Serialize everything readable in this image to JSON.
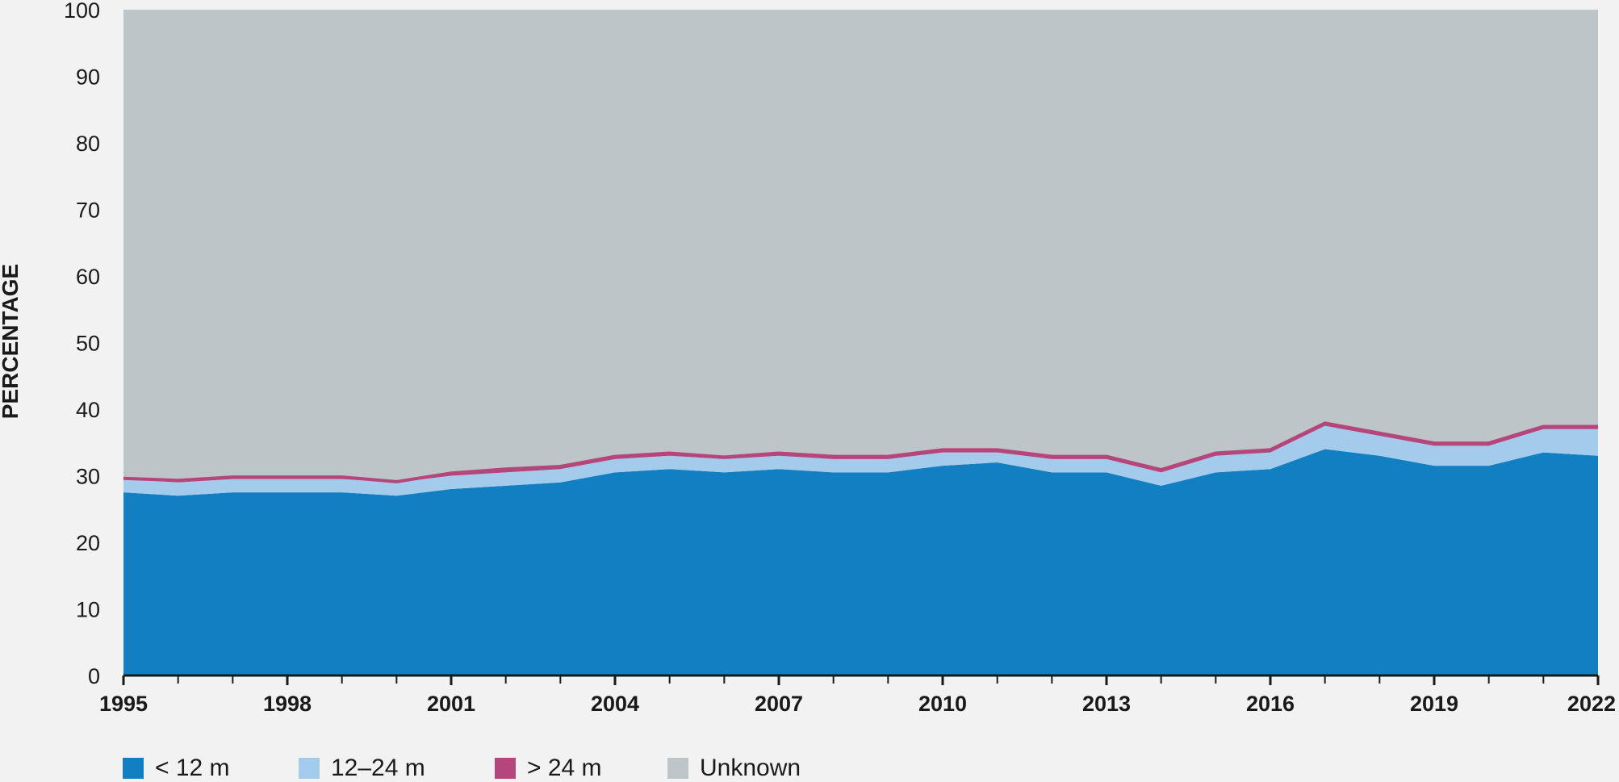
{
  "chart_data": {
    "type": "area",
    "stacked": true,
    "ylabel": "PERCENTAGE",
    "xlabel": "",
    "ylim": [
      0,
      100
    ],
    "yticks": [
      0,
      10,
      20,
      30,
      40,
      50,
      60,
      70,
      80,
      90,
      100
    ],
    "x": [
      1995,
      1996,
      1997,
      1998,
      1999,
      2000,
      2001,
      2002,
      2003,
      2004,
      2005,
      2006,
      2007,
      2008,
      2009,
      2010,
      2011,
      2012,
      2013,
      2014,
      2015,
      2016,
      2017,
      2018,
      2019,
      2020,
      2021,
      2022
    ],
    "xtick_labels": [
      "1995",
      "1998",
      "2001",
      "2004",
      "2007",
      "2010",
      "2013",
      "2016",
      "2019",
      "2022"
    ],
    "series": [
      {
        "name": "< 12 m",
        "color": "#127fc2",
        "values": [
          27.5,
          27.0,
          27.5,
          27.5,
          27.5,
          27.0,
          28.0,
          28.5,
          29.0,
          30.5,
          31.0,
          30.5,
          31.0,
          30.5,
          30.5,
          31.5,
          32.0,
          30.5,
          30.5,
          28.5,
          30.5,
          31.0,
          34.0,
          33.0,
          31.5,
          31.5,
          33.5,
          33.0
        ]
      },
      {
        "name": "12–24 m",
        "color": "#a3cbeb",
        "values": [
          2.0,
          2.0,
          2.0,
          2.0,
          2.0,
          2.0,
          2.0,
          2.0,
          2.0,
          2.0,
          2.0,
          2.0,
          2.0,
          2.0,
          2.0,
          2.0,
          1.5,
          2.0,
          2.0,
          2.0,
          2.5,
          2.5,
          3.5,
          3.0,
          3.0,
          3.0,
          3.5,
          4.0
        ]
      },
      {
        "name": "> 24 m",
        "color": "#b5467c",
        "values": [
          0.1,
          0.3,
          0.3,
          0.3,
          0.3,
          0.1,
          0.4,
          0.5,
          0.4,
          0.4,
          0.4,
          0.3,
          0.4,
          0.4,
          0.4,
          0.4,
          0.4,
          0.4,
          0.4,
          0.4,
          0.4,
          0.4,
          0.4,
          0.4,
          0.4,
          0.4,
          0.4,
          0.4
        ]
      },
      {
        "name": "Unknown",
        "color": "#bec5c8",
        "values": [
          70.4,
          70.7,
          70.2,
          70.2,
          70.2,
          70.9,
          69.6,
          69.0,
          68.6,
          67.1,
          66.6,
          67.2,
          66.6,
          67.1,
          67.1,
          66.1,
          66.1,
          67.1,
          67.1,
          69.1,
          66.6,
          66.1,
          62.1,
          63.6,
          65.1,
          65.1,
          62.6,
          62.6
        ]
      }
    ],
    "legend_position": "bottom-left",
    "grid": false
  }
}
